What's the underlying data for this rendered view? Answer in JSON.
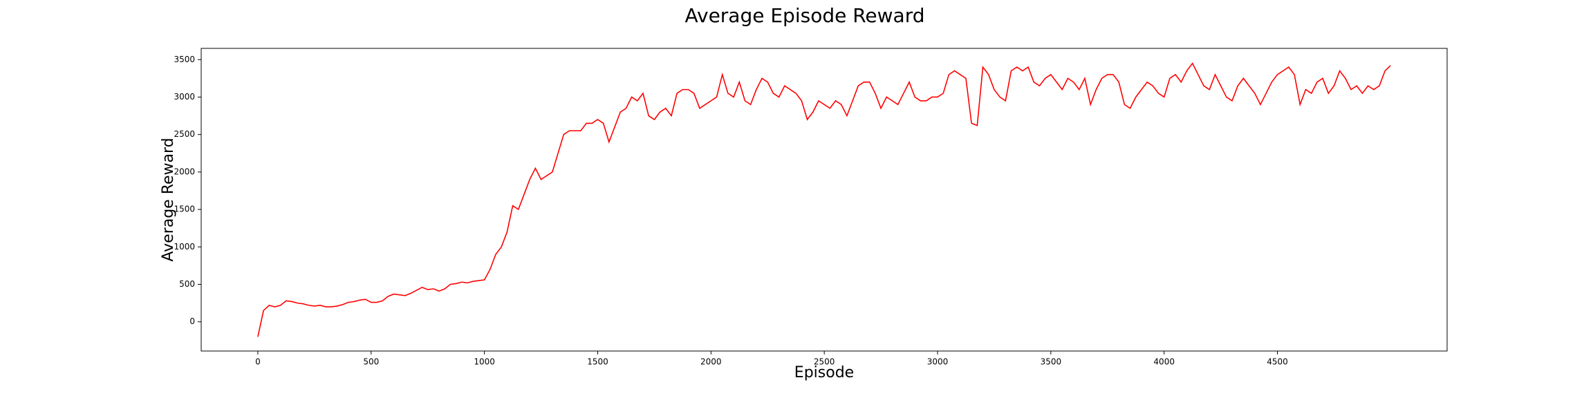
{
  "chart_data": {
    "type": "line",
    "title": "Average Episode Reward",
    "x_label": "Episode",
    "y_label": "Average Reward",
    "xlim": [
      -250,
      5249
    ],
    "ylim": [
      -390,
      3650
    ],
    "xticks": [
      0,
      500,
      1000,
      1500,
      2000,
      2500,
      3000,
      3500,
      4000,
      4500
    ],
    "yticks": [
      0,
      500,
      1000,
      1500,
      2000,
      2500,
      3000,
      3500
    ],
    "grid": false,
    "series": [
      {
        "color": "#ff0000",
        "x": [
          0,
          25,
          50,
          75,
          100,
          125,
          150,
          175,
          200,
          225,
          250,
          275,
          300,
          325,
          350,
          375,
          400,
          425,
          450,
          475,
          500,
          525,
          550,
          575,
          600,
          625,
          650,
          675,
          700,
          725,
          750,
          775,
          800,
          825,
          850,
          875,
          900,
          925,
          950,
          975,
          1000,
          1025,
          1050,
          1075,
          1100,
          1125,
          1150,
          1175,
          1200,
          1225,
          1250,
          1275,
          1300,
          1325,
          1350,
          1375,
          1400,
          1425,
          1450,
          1475,
          1500,
          1525,
          1550,
          1575,
          1600,
          1625,
          1650,
          1675,
          1700,
          1725,
          1750,
          1775,
          1800,
          1825,
          1850,
          1875,
          1900,
          1925,
          1950,
          1975,
          2000,
          2025,
          2050,
          2075,
          2100,
          2125,
          2150,
          2175,
          2200,
          2225,
          2250,
          2275,
          2300,
          2325,
          2350,
          2375,
          2400,
          2425,
          2450,
          2475,
          2500,
          2525,
          2550,
          2575,
          2600,
          2625,
          2650,
          2675,
          2700,
          2725,
          2750,
          2775,
          2800,
          2825,
          2850,
          2875,
          2900,
          2925,
          2950,
          2975,
          3000,
          3025,
          3050,
          3075,
          3100,
          3125,
          3150,
          3175,
          3200,
          3225,
          3250,
          3275,
          3300,
          3325,
          3350,
          3375,
          3400,
          3425,
          3450,
          3475,
          3500,
          3525,
          3550,
          3575,
          3600,
          3625,
          3650,
          3675,
          3700,
          3725,
          3750,
          3775,
          3800,
          3825,
          3850,
          3875,
          3900,
          3925,
          3950,
          3975,
          4000,
          4025,
          4050,
          4075,
          4100,
          4125,
          4150,
          4175,
          4200,
          4225,
          4250,
          4275,
          4300,
          4325,
          4350,
          4375,
          4400,
          4425,
          4450,
          4475,
          4500,
          4525,
          4550,
          4575,
          4600,
          4625,
          4650,
          4675,
          4700,
          4725,
          4750,
          4775,
          4800,
          4825,
          4850,
          4875,
          4900,
          4925,
          4950,
          4975,
          4999
        ],
        "values": [
          -200,
          150,
          220,
          200,
          220,
          280,
          270,
          250,
          240,
          220,
          210,
          220,
          200,
          200,
          210,
          230,
          260,
          270,
          290,
          300,
          260,
          260,
          280,
          340,
          370,
          360,
          350,
          380,
          420,
          460,
          430,
          440,
          410,
          440,
          500,
          510,
          530,
          520,
          540,
          550,
          560,
          700,
          900,
          1000,
          1200,
          1550,
          1500,
          1700,
          1900,
          2050,
          1900,
          1950,
          2000,
          2250,
          2500,
          2550,
          2550,
          2550,
          2650,
          2650,
          2700,
          2650,
          2400,
          2600,
          2800,
          2850,
          3000,
          2950,
          3050,
          2750,
          2700,
          2800,
          2850,
          2750,
          3050,
          3100,
          3100,
          3050,
          2850,
          2900,
          2950,
          3000,
          3300,
          3050,
          3000,
          3200,
          2950,
          2900,
          3100,
          3250,
          3200,
          3050,
          3000,
          3150,
          3100,
          3050,
          2950,
          2700,
          2800,
          2950,
          2900,
          2850,
          2950,
          2900,
          2750,
          2950,
          3150,
          3200,
          3200,
          3050,
          2850,
          3000,
          2950,
          2900,
          3050,
          3200,
          3000,
          2950,
          2950,
          3000,
          3000,
          3050,
          3300,
          3350,
          3300,
          3250,
          2650,
          2620,
          3400,
          3300,
          3100,
          3000,
          2950,
          3350,
          3400,
          3350,
          3400,
          3200,
          3150,
          3250,
          3300,
          3200,
          3100,
          3250,
          3200,
          3100,
          3250,
          2900,
          3100,
          3250,
          3300,
          3300,
          3200,
          2900,
          2850,
          3000,
          3100,
          3200,
          3150,
          3050,
          3000,
          3250,
          3300,
          3200,
          3350,
          3450,
          3300,
          3150,
          3100,
          3300,
          3150,
          3000,
          2950,
          3150,
          3250,
          3150,
          3050,
          2900,
          3050,
          3200,
          3300,
          3350,
          3400,
          3300,
          2900,
          3100,
          3050,
          3200,
          3250,
          3050,
          3150,
          3350,
          3250,
          3100,
          3150,
          3050,
          3150,
          3100,
          3150,
          3350,
          3420
        ]
      }
    ]
  }
}
